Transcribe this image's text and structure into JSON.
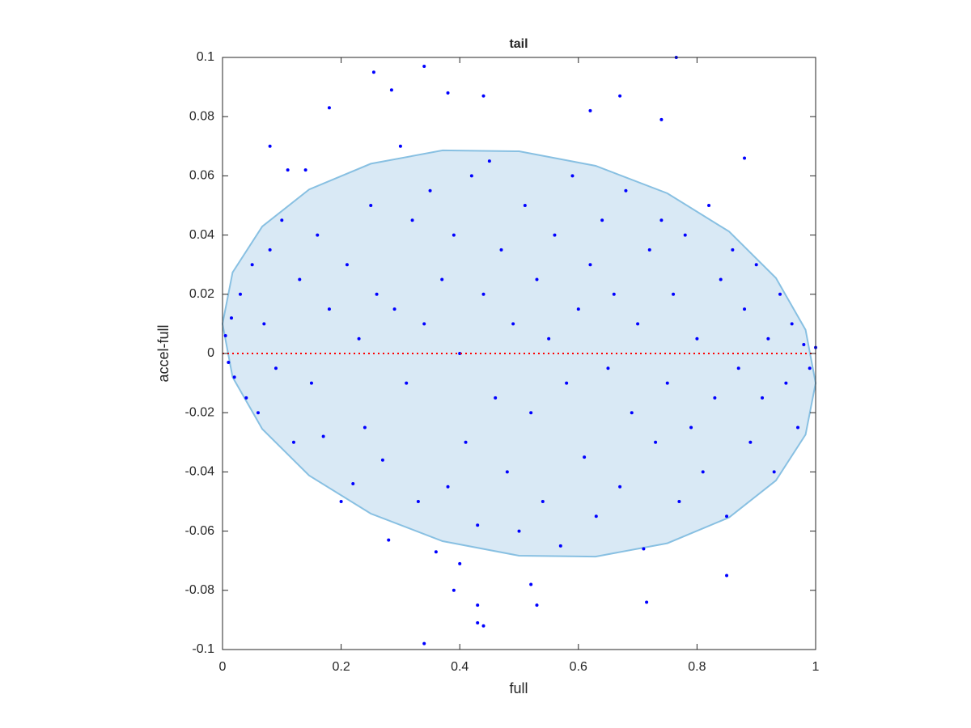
{
  "chart_data": {
    "type": "scatter",
    "title": "tail",
    "xlabel": "full",
    "ylabel": "accel-full",
    "xlim": [
      0,
      1
    ],
    "ylim": [
      -0.1,
      0.1
    ],
    "xticks": [
      0,
      0.2,
      0.4,
      0.6,
      0.8,
      1
    ],
    "yticks": [
      -0.1,
      -0.08,
      -0.06,
      -0.04,
      -0.02,
      0,
      0.02,
      0.04,
      0.06,
      0.08,
      0.1
    ],
    "series": [
      {
        "type": "fill",
        "color": "#d9e9f5",
        "edge_color": "#88c0e2",
        "x": [
          1,
          0.983,
          0.933,
          0.854,
          0.75,
          0.629,
          0.5,
          0.371,
          0.25,
          0.146,
          0.067,
          0.017,
          0,
          0.017,
          0.067,
          0.146,
          0.25,
          0.371,
          0.5,
          0.629,
          0.75,
          0.854,
          0.933,
          0.983
        ],
        "y": [
          -0.01,
          0.008,
          0.0255,
          0.0412,
          0.0541,
          0.0634,
          0.0683,
          0.0686,
          0.0641,
          0.0554,
          0.0429,
          0.0274,
          0.01,
          -0.008,
          -0.0255,
          -0.0412,
          -0.0541,
          -0.0634,
          -0.0683,
          -0.0686,
          -0.0641,
          -0.0554,
          -0.0429,
          -0.0274
        ]
      },
      {
        "type": "scatter",
        "color": "#0000ff",
        "x": [
          0.005,
          0.01,
          0.015,
          0.02,
          0.03,
          0.04,
          0.05,
          0.06,
          0.07,
          0.08,
          0.09,
          0.1,
          0.11,
          0.12,
          0.13,
          0.14,
          0.15,
          0.16,
          0.17,
          0.18,
          0.2,
          0.21,
          0.22,
          0.23,
          0.24,
          0.25,
          0.26,
          0.27,
          0.28,
          0.29,
          0.3,
          0.31,
          0.32,
          0.33,
          0.34,
          0.35,
          0.36,
          0.37,
          0.38,
          0.39,
          0.4,
          0.41,
          0.42,
          0.43,
          0.44,
          0.45,
          0.46,
          0.47,
          0.48,
          0.49,
          0.5,
          0.51,
          0.52,
          0.53,
          0.54,
          0.55,
          0.56,
          0.57,
          0.58,
          0.59,
          0.6,
          0.61,
          0.62,
          0.63,
          0.64,
          0.65,
          0.66,
          0.67,
          0.68,
          0.69,
          0.7,
          0.71,
          0.72,
          0.73,
          0.74,
          0.75,
          0.76,
          0.77,
          0.78,
          0.79,
          0.8,
          0.81,
          0.82,
          0.83,
          0.84,
          0.85,
          0.86,
          0.87,
          0.88,
          0.89,
          0.9,
          0.91,
          0.92,
          0.93,
          0.94,
          0.95,
          0.96,
          0.97,
          0.98,
          0.99,
          1,
          0.34,
          0.255,
          0.765,
          0.285,
          0.38,
          0.44,
          0.67,
          0.18,
          0.62,
          0.08,
          0.74,
          0.88,
          0.34,
          0.43,
          0.44,
          0.43,
          0.53,
          0.39,
          0.715,
          0.85,
          0.4,
          0.52
        ],
        "y": [
          0.006,
          -0.003,
          0.012,
          -0.008,
          0.02,
          -0.015,
          0.03,
          -0.02,
          0.01,
          0.035,
          -0.005,
          0.045,
          0.062,
          -0.03,
          0.025,
          0.062,
          -0.01,
          0.04,
          -0.028,
          0.015,
          -0.05,
          0.03,
          -0.044,
          0.005,
          -0.025,
          0.05,
          0.02,
          -0.036,
          -0.063,
          0.015,
          0.07,
          -0.01,
          0.045,
          -0.05,
          0.01,
          0.055,
          -0.067,
          0.025,
          -0.045,
          0.04,
          0,
          -0.03,
          0.06,
          -0.058,
          0.02,
          0.065,
          -0.015,
          0.035,
          -0.04,
          0.01,
          -0.06,
          0.05,
          -0.02,
          0.025,
          -0.05,
          0.005,
          0.04,
          -0.065,
          -0.01,
          0.06,
          0.015,
          -0.035,
          0.03,
          -0.055,
          0.045,
          -0.005,
          0.02,
          -0.045,
          0.055,
          -0.02,
          0.01,
          -0.066,
          0.035,
          -0.03,
          0.045,
          -0.01,
          0.02,
          -0.05,
          0.04,
          -0.025,
          0.005,
          -0.04,
          0.05,
          -0.015,
          0.025,
          -0.055,
          0.035,
          -0.005,
          0.015,
          -0.03,
          0.03,
          -0.015,
          0.005,
          -0.04,
          0.02,
          -0.01,
          0.01,
          -0.025,
          0.003,
          -0.005,
          0.002,
          0.097,
          0.095,
          0.1,
          0.089,
          0.088,
          0.087,
          0.087,
          0.083,
          0.082,
          0.07,
          0.079,
          0.066,
          -0.098,
          -0.091,
          -0.092,
          -0.085,
          -0.085,
          -0.08,
          -0.084,
          -0.075,
          -0.071,
          -0.078
        ]
      },
      {
        "type": "line",
        "color": "#ff0000",
        "style": "dotted",
        "x": [
          0,
          1
        ],
        "y": [
          0,
          0
        ]
      }
    ]
  }
}
